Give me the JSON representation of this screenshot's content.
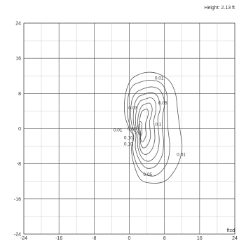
{
  "chart_data": {
    "type": "contour",
    "title": "",
    "height_label": "Height: 2.13 ft",
    "unit_label": "ftcd",
    "xlim": [
      -24,
      24
    ],
    "ylim": [
      -24,
      24
    ],
    "x_ticks": [
      "-24",
      "-16",
      "-8",
      "0",
      "8",
      "16",
      "24"
    ],
    "y_ticks": [
      "24",
      "16",
      "8",
      "0",
      "-8",
      "-16",
      "-24"
    ],
    "grid": true,
    "grid_step": 4,
    "line_color": "#555555",
    "contours": [
      {
        "level": "0.01",
        "points": [
          [
            1.5,
            12
          ],
          [
            4,
            12.8
          ],
          [
            6.5,
            12.5
          ],
          [
            9,
            11
          ],
          [
            10.5,
            8
          ],
          [
            11,
            4
          ],
          [
            11.5,
            0
          ],
          [
            12,
            -4
          ],
          [
            11.5,
            -7
          ],
          [
            10,
            -10
          ],
          [
            8,
            -12
          ],
          [
            5,
            -12.4
          ],
          [
            2.5,
            -11.5
          ],
          [
            1,
            -8
          ],
          [
            0.5,
            -4.5
          ],
          [
            1,
            -2
          ],
          [
            0,
            0
          ],
          [
            -1,
            3
          ],
          [
            -1,
            7
          ],
          [
            0,
            10.5
          ]
        ]
      },
      {
        "level": "0.05",
        "points": [
          [
            2,
            10.4
          ],
          [
            4.5,
            11
          ],
          [
            7,
            10.5
          ],
          [
            8.5,
            8
          ],
          [
            8.6,
            4
          ],
          [
            8.8,
            0
          ],
          [
            9.2,
            -4
          ],
          [
            8.7,
            -7.5
          ],
          [
            7,
            -10
          ],
          [
            5,
            -10.8
          ],
          [
            2.5,
            -9.5
          ],
          [
            1,
            -6
          ],
          [
            0.8,
            -3
          ],
          [
            1,
            -1.6
          ],
          [
            0.4,
            0
          ],
          [
            -0.4,
            3
          ],
          [
            -0.3,
            7
          ],
          [
            0.6,
            9.5
          ]
        ]
      },
      {
        "level": "0.1",
        "points": [
          [
            2.5,
            8.8
          ],
          [
            5,
            9.5
          ],
          [
            7,
            8.7
          ],
          [
            8,
            6
          ],
          [
            7.6,
            3
          ],
          [
            7.5,
            0
          ],
          [
            7.8,
            -3
          ],
          [
            7.5,
            -6
          ],
          [
            6,
            -8.5
          ],
          [
            4,
            -9
          ],
          [
            2.5,
            -7.5
          ],
          [
            1.4,
            -4.5
          ],
          [
            1.5,
            -1.3
          ],
          [
            0.8,
            0
          ],
          [
            0.3,
            3
          ],
          [
            0.6,
            6.5
          ],
          [
            1.4,
            8
          ]
        ]
      },
      {
        "level": "",
        "points": [
          [
            2.8,
            7.6
          ],
          [
            5,
            8.2
          ],
          [
            6.5,
            7.2
          ],
          [
            7,
            4.5
          ],
          [
            6.5,
            2.5
          ],
          [
            6.6,
            0
          ],
          [
            6.8,
            -3
          ],
          [
            6.2,
            -5.8
          ],
          [
            4.6,
            -7.4
          ],
          [
            3,
            -6.8
          ],
          [
            2,
            -4.5
          ],
          [
            1.8,
            -1.5
          ],
          [
            1.2,
            0
          ],
          [
            0.9,
            2.5
          ],
          [
            1.2,
            5.5
          ],
          [
            1.9,
            7
          ]
        ]
      },
      {
        "level": "",
        "points": [
          [
            3,
            6.5
          ],
          [
            5,
            7
          ],
          [
            6,
            5.8
          ],
          [
            6,
            3.8
          ],
          [
            5.6,
            2
          ],
          [
            5.7,
            0
          ],
          [
            5.8,
            -2.5
          ],
          [
            5.1,
            -4.8
          ],
          [
            3.8,
            -5.9
          ],
          [
            2.7,
            -5.2
          ],
          [
            2.3,
            -3.5
          ],
          [
            2.2,
            -1.4
          ],
          [
            1.6,
            0
          ],
          [
            1.4,
            2
          ],
          [
            1.7,
            4.5
          ],
          [
            2.3,
            6
          ]
        ]
      },
      {
        "level": "",
        "points": [
          [
            3.2,
            5.4
          ],
          [
            4.6,
            5.8
          ],
          [
            5.2,
            4.6
          ],
          [
            5,
            3
          ],
          [
            4.6,
            1.6
          ],
          [
            4.7,
            0
          ],
          [
            4.8,
            -2
          ],
          [
            4.1,
            -3.8
          ],
          [
            3.3,
            -4.4
          ],
          [
            2.7,
            -3.8
          ],
          [
            2.5,
            -2.5
          ],
          [
            2.5,
            -1.2
          ],
          [
            2,
            0
          ],
          [
            1.9,
            1.6
          ],
          [
            2.2,
            3.7
          ],
          [
            2.7,
            4.9
          ]
        ]
      },
      {
        "level": "",
        "points": [
          [
            3.2,
            4.2
          ],
          [
            4.1,
            4.4
          ],
          [
            4.3,
            3.3
          ],
          [
            4,
            2.1
          ],
          [
            3.7,
            1.2
          ],
          [
            3.7,
            0
          ],
          [
            3.8,
            -1.5
          ],
          [
            3.3,
            -2.7
          ],
          [
            2.9,
            -3
          ],
          [
            2.6,
            -2.4
          ],
          [
            2.6,
            -1.3
          ],
          [
            2.4,
            0
          ],
          [
            2.3,
            1.4
          ],
          [
            2.5,
            2.8
          ],
          [
            2.8,
            3.8
          ]
        ]
      },
      {
        "level": "",
        "points": [
          [
            2.5,
            1.6
          ],
          [
            2.9,
            1.1
          ],
          [
            2.8,
            0
          ],
          [
            2.9,
            -1
          ],
          [
            2.6,
            -1.6
          ],
          [
            2.2,
            -1
          ],
          [
            2.1,
            0
          ],
          [
            2.2,
            1
          ]
        ]
      }
    ],
    "contour_labels": [
      {
        "text": "0.01",
        "x": 6.8,
        "y": 11.2
      },
      {
        "text": "0.05",
        "x": 7.6,
        "y": 5.5
      },
      {
        "text": "0.03",
        "x": 0.8,
        "y": 4.4
      },
      {
        "text": "0.1",
        "x": 6.6,
        "y": 0.6
      },
      {
        "text": "0.01",
        "x": -2.6,
        "y": -0.6
      },
      {
        "text": "0.50",
        "x": 0.6,
        "y": -0.4
      },
      {
        "text": "0.10",
        "x": -0.2,
        "y": -2.4
      },
      {
        "text": "0.10",
        "x": -0.2,
        "y": -3.8
      },
      {
        "text": "0.01",
        "x": 11.8,
        "y": -6.2
      },
      {
        "text": "0.05",
        "x": 4.2,
        "y": -10.8
      }
    ]
  }
}
